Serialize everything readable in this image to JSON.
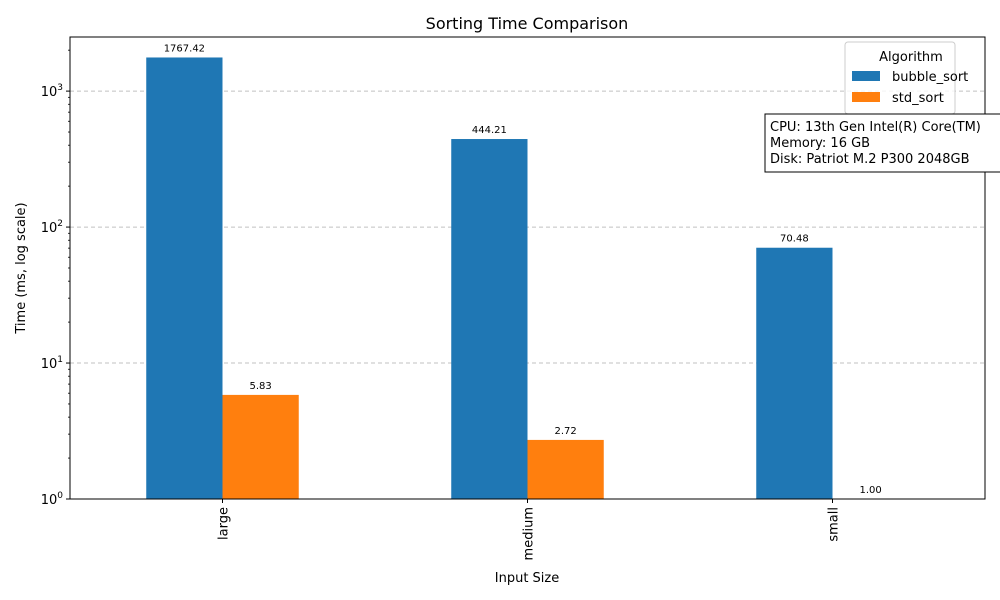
{
  "chart_data": {
    "type": "bar",
    "title": "Sorting Time Comparison",
    "xlabel": "Input Size",
    "ylabel": "Time (ms, log scale)",
    "yscale": "log",
    "ylim": [
      1,
      2500
    ],
    "grid": "y-major-dashed",
    "categories": [
      "large",
      "medium",
      "small"
    ],
    "series": [
      {
        "name": "bubble_sort",
        "color": "#1f77b4",
        "values": [
          1767.42,
          444.21,
          70.48
        ],
        "labels": [
          "1767.42",
          "444.21",
          "70.48"
        ]
      },
      {
        "name": "std_sort",
        "color": "#ff7f0e",
        "values": [
          5.83,
          2.72,
          1.0
        ],
        "labels": [
          "5.83",
          "2.72",
          "1.00"
        ]
      }
    ],
    "yticks": [
      {
        "value": 1,
        "base": "10",
        "exp": "0"
      },
      {
        "value": 10,
        "base": "10",
        "exp": "1"
      },
      {
        "value": 100,
        "base": "10",
        "exp": "2"
      },
      {
        "value": 1000,
        "base": "10",
        "exp": "3"
      }
    ],
    "legend": {
      "title": "Algorithm",
      "placement": "top-right"
    },
    "annotation_lines": [
      "CPU: 13th Gen Intel(R) Core(TM)",
      "Memory: 16 GB",
      "Disk: Patriot M.2 P300 2048GB"
    ]
  }
}
